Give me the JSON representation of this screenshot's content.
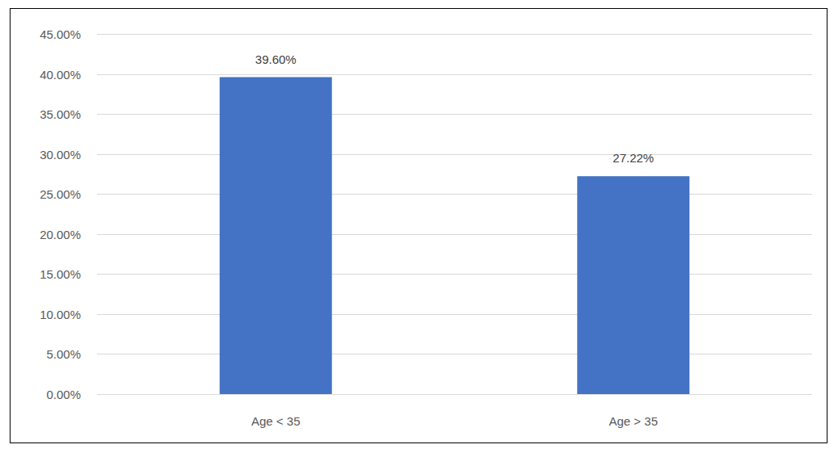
{
  "chart_data": {
    "type": "bar",
    "categories": [
      "Age < 35",
      "Age > 35"
    ],
    "values": [
      39.6,
      27.22
    ],
    "value_labels": [
      "39.60%",
      "27.22%"
    ],
    "color": "#4472c4",
    "ylim": [
      0,
      45
    ],
    "yticks": [
      {
        "value": 0,
        "label": "0.00%"
      },
      {
        "value": 5,
        "label": "5.00%"
      },
      {
        "value": 10,
        "label": "10.00%"
      },
      {
        "value": 15,
        "label": "15.00%"
      },
      {
        "value": 20,
        "label": "20.00%"
      },
      {
        "value": 25,
        "label": "25.00%"
      },
      {
        "value": 30,
        "label": "30.00%"
      },
      {
        "value": 35,
        "label": "35.00%"
      },
      {
        "value": 40,
        "label": "40.00%"
      },
      {
        "value": 45,
        "label": "45.00%"
      }
    ],
    "grid": true,
    "data_labels": true
  }
}
